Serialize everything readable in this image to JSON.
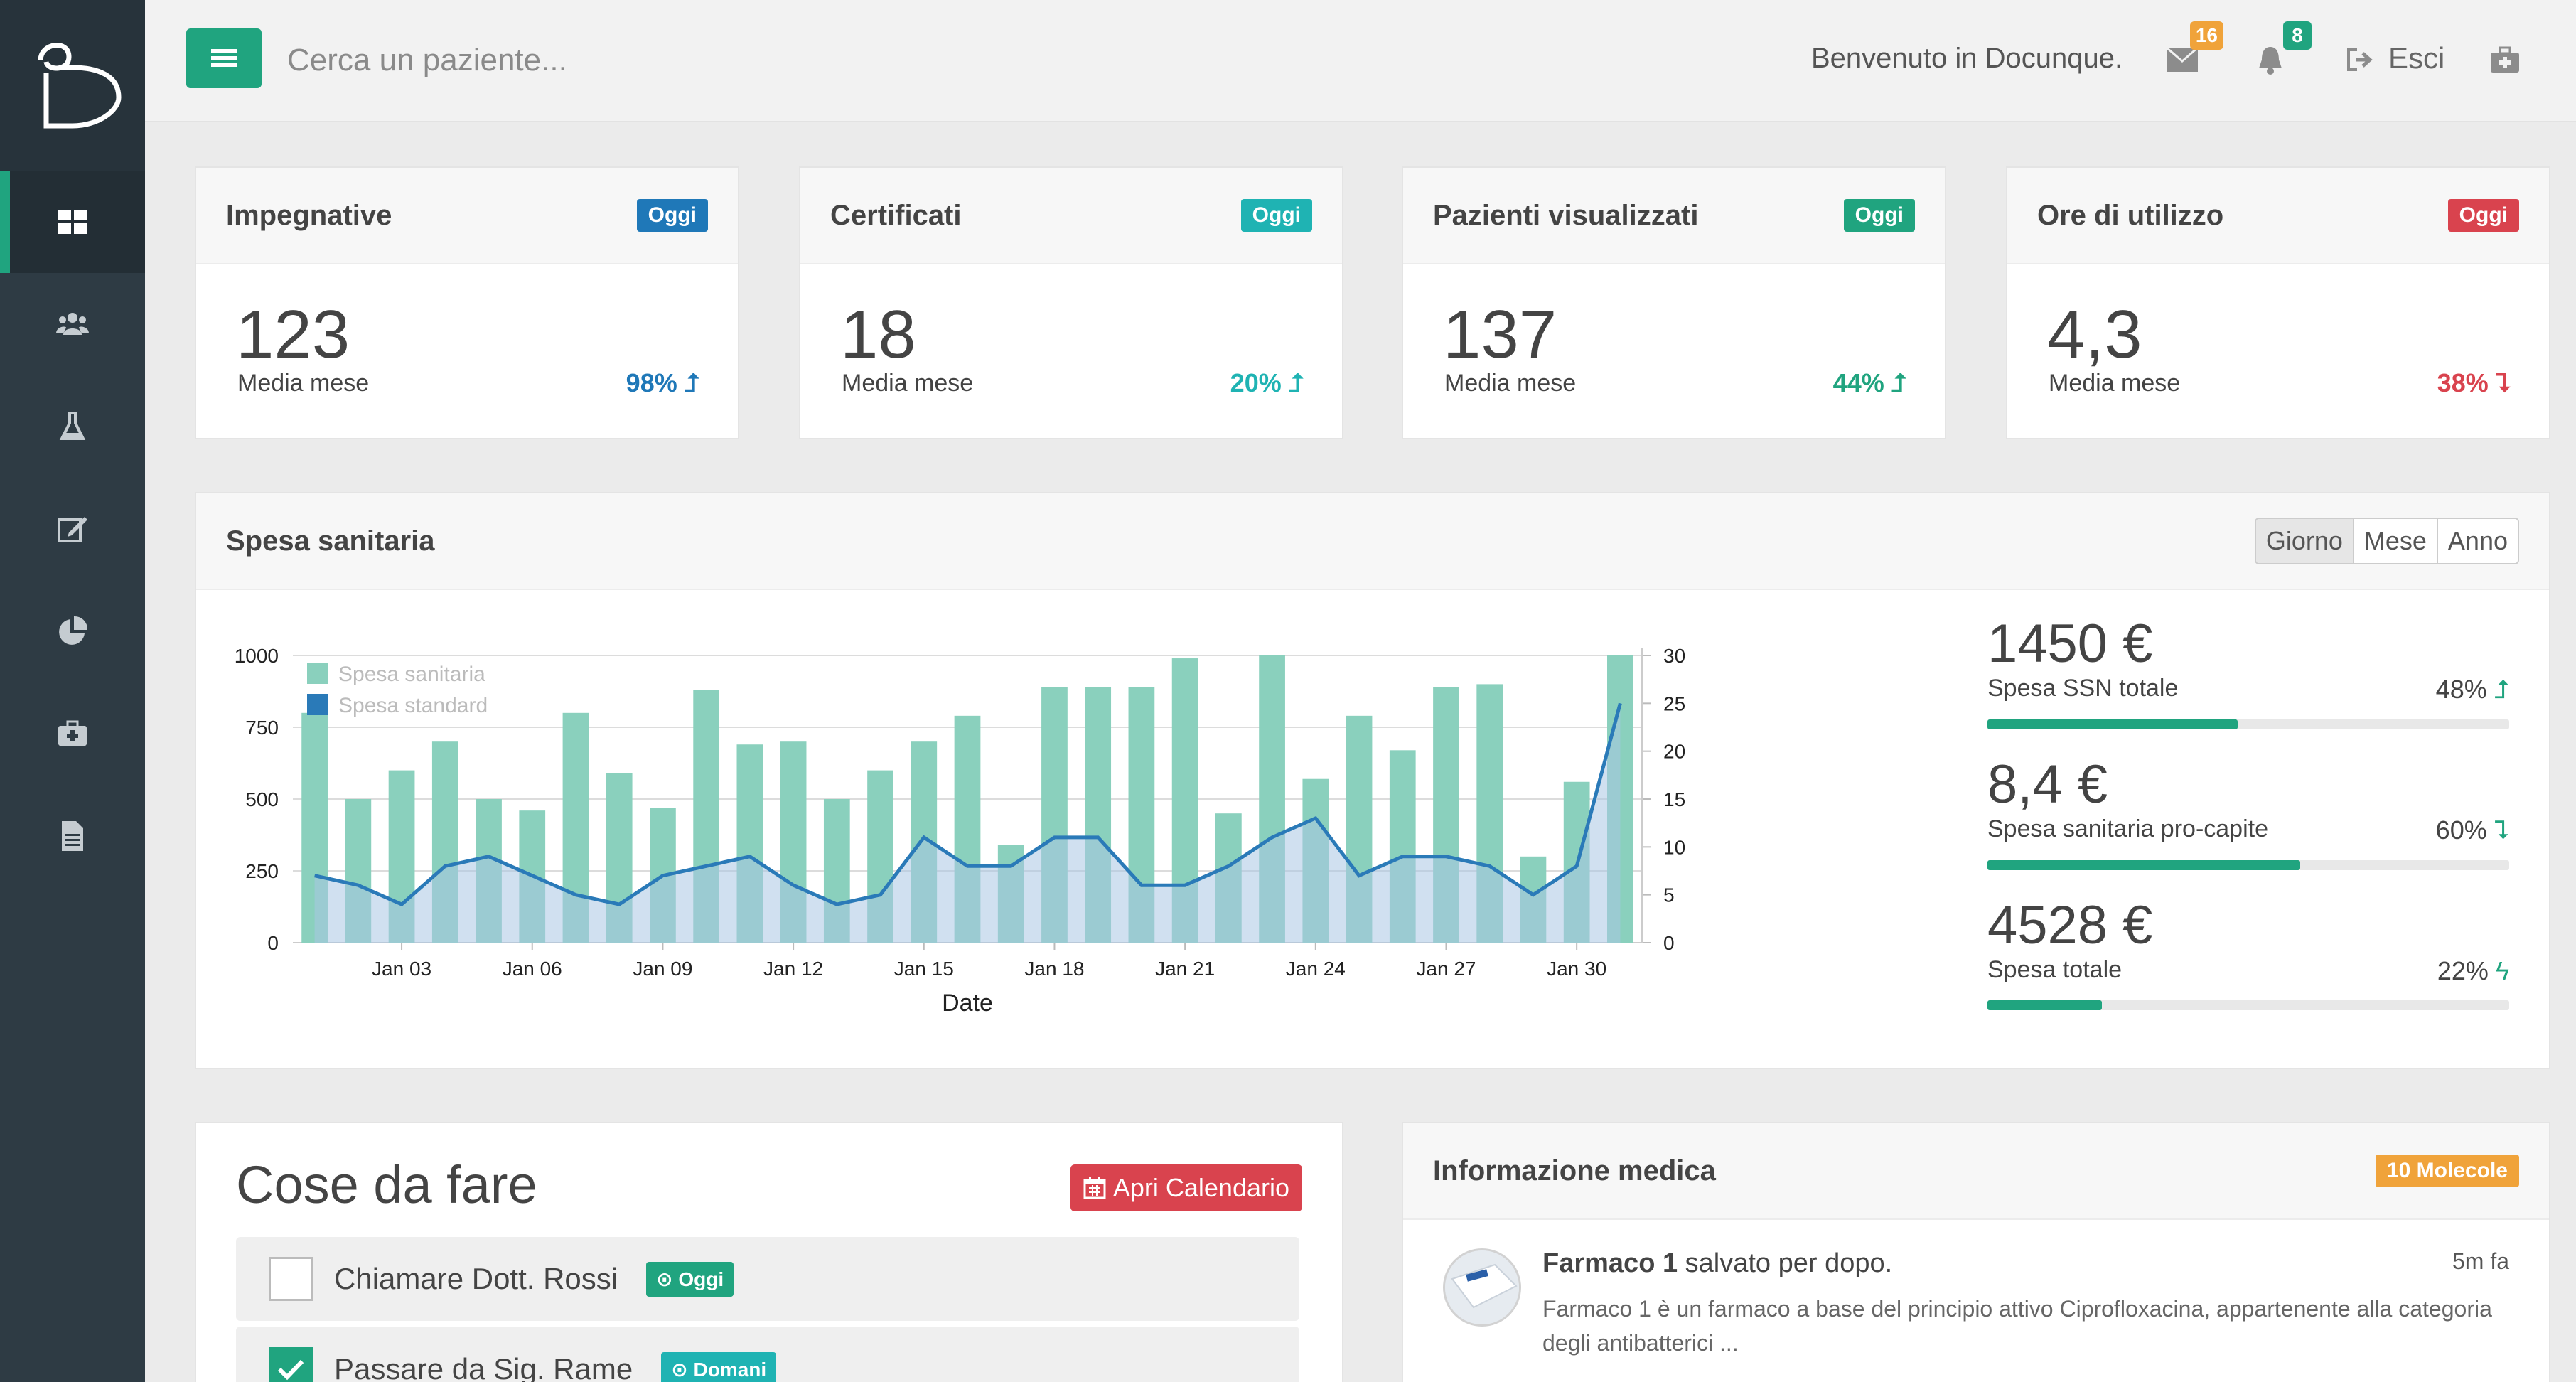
{
  "topbar": {
    "search_placeholder": "Cerca un paziente...",
    "welcome": "Benvenuto in Docunque.",
    "messages_count": "16",
    "notifications_count": "8",
    "exit_label": "Esci"
  },
  "sidebar": {
    "items": [
      "dashboard-icon",
      "users-icon",
      "flask-icon",
      "edit-icon",
      "pie-chart-icon",
      "medkit-icon",
      "file-icon"
    ],
    "active_index": 0
  },
  "stats": [
    {
      "title": "Impegnative",
      "tag": "Oggi",
      "tag_color": "#1f78b8",
      "value": "123",
      "sub": "Media mese",
      "pct": "98%",
      "pct_color": "#1f78b8",
      "trend": "up"
    },
    {
      "title": "Certificati",
      "tag": "Oggi",
      "tag_color": "#1fb3b3",
      "value": "18",
      "sub": "Media mese",
      "pct": "20%",
      "pct_color": "#1fb3b3",
      "trend": "up"
    },
    {
      "title": "Pazienti visualizzati",
      "tag": "Oggi",
      "tag_color": "#20a47f",
      "value": "137",
      "sub": "Media mese",
      "pct": "44%",
      "pct_color": "#20a47f",
      "trend": "up"
    },
    {
      "title": "Ore di utilizzo",
      "tag": "Oggi",
      "tag_color": "#d9434e",
      "value": "4,3",
      "sub": "Media mese",
      "pct": "38%",
      "pct_color": "#d9434e",
      "trend": "down"
    }
  ],
  "spesa": {
    "title": "Spesa sanitaria",
    "range": [
      "Giorno",
      "Mese",
      "Anno"
    ],
    "metrics": [
      {
        "value": "1450 €",
        "label": "Spesa SSN totale",
        "pct": "48%",
        "trend": "up",
        "fill": 0.48
      },
      {
        "value": "8,4 €",
        "label": "Spesa sanitaria pro-capite",
        "pct": "60%",
        "trend": "down",
        "fill": 0.6
      },
      {
        "value": "4528 €",
        "label": "Spesa totale",
        "pct": "22%",
        "trend": "flash",
        "fill": 0.22
      }
    ]
  },
  "chart_data": {
    "type": "bar",
    "xlabel": "Date",
    "x_ticks": [
      "Jan 03",
      "Jan 06",
      "Jan 09",
      "Jan 12",
      "Jan 15",
      "Jan 18",
      "Jan 21",
      "Jan 24",
      "Jan 27",
      "Jan 30"
    ],
    "x_tick_days": [
      3,
      6,
      9,
      12,
      15,
      18,
      21,
      24,
      27,
      30
    ],
    "days": [
      1,
      2,
      3,
      4,
      5,
      6,
      7,
      8,
      9,
      10,
      11,
      12,
      13,
      14,
      15,
      16,
      17,
      18,
      19,
      20,
      21,
      22,
      23,
      24,
      25,
      26,
      27,
      28,
      29,
      30,
      31
    ],
    "y_left": {
      "ticks": [
        0,
        250,
        500,
        750,
        1000
      ],
      "range": [
        0,
        1000
      ]
    },
    "y_right": {
      "ticks": [
        0,
        5,
        10,
        15,
        20,
        25,
        30
      ],
      "range": [
        0,
        30
      ]
    },
    "series": [
      {
        "name": "Spesa sanitaria",
        "color": "#8ad0bd",
        "axis": "left",
        "kind": "bar",
        "values": [
          800,
          500,
          600,
          700,
          500,
          460,
          800,
          590,
          470,
          880,
          690,
          700,
          500,
          600,
          700,
          790,
          340,
          890,
          890,
          890,
          990,
          450,
          1000,
          570,
          790,
          670,
          890,
          900,
          300,
          560,
          1000
        ]
      },
      {
        "name": "Spesa standard",
        "color": "#2a7ab8",
        "axis": "right",
        "kind": "area",
        "values": [
          7,
          6,
          4,
          8,
          9,
          7,
          5,
          4,
          7,
          8,
          9,
          6,
          4,
          5,
          11,
          8,
          8,
          11,
          11,
          6,
          6,
          8,
          11,
          13,
          7,
          9,
          9,
          8,
          5,
          8,
          25
        ]
      }
    ]
  },
  "todo": {
    "title": "Cose da fare",
    "button": "Apri Calendario",
    "items": [
      {
        "text": "Chiamare Dott. Rossi",
        "tag": "Oggi",
        "tag_color": "#20a47f",
        "checked": false
      },
      {
        "text": "Passare da Sig. Rame",
        "tag": "Domani",
        "tag_color": "#1fb3b3",
        "checked": true
      }
    ]
  },
  "info": {
    "title": "Informazione medica",
    "tag": "10 Molecole",
    "item": {
      "name": "Farmaco 1",
      "action": " salvato per dopo.",
      "time": "5m fa",
      "desc": "Farmaco 1 è un farmaco a base del principio attivo Ciprofloxacina, appartenente alla categoria degli antibatterici ..."
    }
  }
}
